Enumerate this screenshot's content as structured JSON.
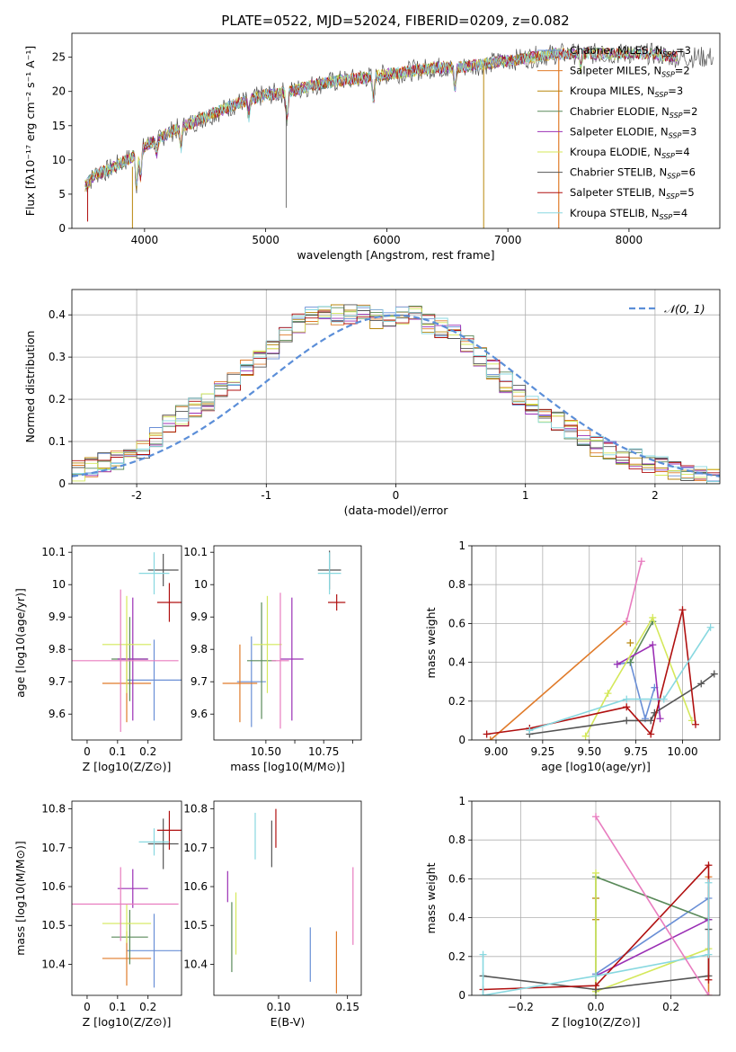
{
  "figure_title": "PLATE=0522, MJD=52024, FIBERID=0209, z=0.082",
  "colors": {
    "Chabrier MILES": "#6a8fd6",
    "Salpeter MILES": "#e07b2a",
    "Kroupa MILES": "#b8860b",
    "Chabrier ELODIE": "#5a8a5a",
    "Salpeter ELODIE": "#9b30b5",
    "Kroupa ELODIE": "#d4e85a",
    "Chabrier STELIB": "#555555",
    "Salpeter STELIB": "#b01010",
    "Kroupa STELIB": "#88d8e0",
    "pink": "#e87cbf",
    "gaussian": "#5b8ed8"
  },
  "chart_data": [
    {
      "id": "spectrum",
      "type": "line",
      "title": "PLATE=0522, MJD=52024, FIBERID=0209, z=0.082",
      "xlabel": "wavelength [Angstrom, rest frame]",
      "ylabel": "Flux [fλ10⁻¹⁷ erg cm⁻² s⁻¹ A⁻¹]",
      "xlim": [
        3400,
        8750
      ],
      "ylim": [
        0,
        28.5
      ],
      "xticks": [
        4000,
        5000,
        6000,
        7000,
        8000
      ],
      "yticks": [
        0,
        5,
        10,
        15,
        20,
        25
      ],
      "legend_loc": "upper right",
      "series": [
        {
          "name": "Chabrier MILES, N_SSP=3",
          "label_main": "Chabrier MILES, N",
          "label_sub": "SSP",
          "label_end": "=3"
        },
        {
          "name": "Salpeter MILES, N_SSP=2",
          "label_main": "Salpeter MILES, N",
          "label_sub": "SSP",
          "label_end": "=2"
        },
        {
          "name": "Kroupa MILES, N_SSP=3",
          "label_main": "Kroupa MILES, N",
          "label_sub": "SSP",
          "label_end": "=3"
        },
        {
          "name": "Chabrier ELODIE, N_SSP=2",
          "label_main": "Chabrier ELODIE, N",
          "label_sub": "SSP",
          "label_end": "=2"
        },
        {
          "name": "Salpeter ELODIE, N_SSP=3",
          "label_main": "Salpeter ELODIE, N",
          "label_sub": "SSP",
          "label_end": "=3"
        },
        {
          "name": "Kroupa ELODIE, N_SSP=4",
          "label_main": "Kroupa ELODIE, N",
          "label_sub": "SSP",
          "label_end": "=4"
        },
        {
          "name": "Chabrier STELIB, N_SSP=6",
          "label_main": "Chabrier STELIB, N",
          "label_sub": "SSP",
          "label_end": "=6"
        },
        {
          "name": "Salpeter STELIB, N_SSP=5",
          "label_main": "Salpeter STELIB, N",
          "label_sub": "SSP",
          "label_end": "=5"
        },
        {
          "name": "Kroupa STELIB, N_SSP=4",
          "label_main": "Kroupa STELIB, N",
          "label_sub": "SSP",
          "label_end": "=4"
        }
      ],
      "continuum": {
        "x": [
          3500,
          3600,
          3700,
          3800,
          3900,
          4000,
          4100,
          4200,
          4400,
          4600,
          4800,
          5000,
          5200,
          5400,
          5600,
          5800,
          6000,
          6200,
          6400,
          6600,
          6800,
          7000,
          7200,
          7400,
          7600,
          7800,
          8000,
          8200,
          8400
        ],
        "y": [
          6,
          8,
          8.5,
          9.5,
          10.5,
          12,
          13,
          14,
          15.5,
          17,
          18.5,
          19.5,
          20,
          21,
          21.5,
          22,
          22.5,
          23,
          23.5,
          23.5,
          24,
          24.5,
          25,
          25.5,
          25.5,
          25.5,
          25.5,
          25.5,
          25
        ]
      }
    },
    {
      "id": "residuals",
      "type": "line",
      "xlabel": "(data-model)/error",
      "ylabel": "Normed distribution",
      "xlim": [
        -2.5,
        2.5
      ],
      "ylim": [
        0,
        0.46
      ],
      "xticks": [
        -2,
        -1,
        0,
        1,
        2
      ],
      "yticks": [
        0.0,
        0.1,
        0.2,
        0.3,
        0.4
      ],
      "legend": "𝒩(0, 1)",
      "legend_loc": "upper right",
      "gaussian": {
        "mean": 0,
        "sigma": 1
      },
      "hist_centers": [
        -2.45,
        -2.35,
        -2.25,
        -2.15,
        -2.05,
        -1.95,
        -1.85,
        -1.75,
        -1.65,
        -1.55,
        -1.45,
        -1.35,
        -1.25,
        -1.15,
        -1.05,
        -0.95,
        -0.85,
        -0.75,
        -0.65,
        -0.55,
        -0.45,
        -0.35,
        -0.25,
        -0.15,
        -0.05,
        0.05,
        0.15,
        0.25,
        0.35,
        0.45,
        0.55,
        0.65,
        0.75,
        0.85,
        0.95,
        1.05,
        1.15,
        1.25,
        1.35,
        1.45,
        1.55,
        1.65,
        1.75,
        1.85,
        1.95,
        2.05,
        2.15,
        2.25,
        2.35,
        2.45
      ],
      "hist_base": [
        0.03,
        0.04,
        0.05,
        0.055,
        0.06,
        0.08,
        0.11,
        0.14,
        0.16,
        0.18,
        0.19,
        0.22,
        0.24,
        0.27,
        0.3,
        0.32,
        0.35,
        0.38,
        0.4,
        0.41,
        0.4,
        0.4,
        0.4,
        0.39,
        0.39,
        0.4,
        0.4,
        0.38,
        0.37,
        0.36,
        0.33,
        0.3,
        0.27,
        0.24,
        0.21,
        0.19,
        0.17,
        0.15,
        0.13,
        0.11,
        0.09,
        0.08,
        0.07,
        0.06,
        0.05,
        0.04,
        0.035,
        0.03,
        0.02,
        0.015
      ]
    },
    {
      "id": "age_vs_Z",
      "type": "scatter",
      "xlabel": "Z [log10(Z/Z⊙)]",
      "ylabel": "age [log10(age/yr)]",
      "xlim": [
        -0.05,
        0.31
      ],
      "ylim": [
        9.52,
        10.12
      ],
      "xticks": [
        0.0,
        0.1,
        0.2
      ],
      "yticks": [
        9.6,
        9.7,
        9.8,
        9.9,
        10.0,
        10.1
      ],
      "points": [
        {
          "c": "Chabrier MILES",
          "x": 0.22,
          "y": 9.705,
          "xerr": 0.09,
          "yerr": 0.125
        },
        {
          "c": "Salpeter MILES",
          "x": 0.13,
          "y": 9.695,
          "xerr": 0.08,
          "yerr": 0.12
        },
        {
          "c": "Chabrier ELODIE",
          "x": 0.14,
          "y": 9.77,
          "xerr": 0.06,
          "yerr": 0.13
        },
        {
          "c": "Salpeter ELODIE",
          "x": 0.15,
          "y": 9.77,
          "xerr": 0.05,
          "yerr": 0.19
        },
        {
          "c": "Kroupa ELODIE",
          "x": 0.13,
          "y": 9.815,
          "xerr": 0.08,
          "yerr": 0.15
        },
        {
          "c": "Chabrier STELIB",
          "x": 0.25,
          "y": 10.045,
          "xerr": 0.05,
          "yerr": 0.05
        },
        {
          "c": "Salpeter STELIB",
          "x": 0.27,
          "y": 9.945,
          "xerr": 0.04,
          "yerr": 0.06
        },
        {
          "c": "Kroupa STELIB",
          "x": 0.22,
          "y": 10.035,
          "xerr": 0.05,
          "yerr": 0.065
        },
        {
          "c": "pink",
          "x": 0.11,
          "y": 9.765,
          "xerr": 0.19,
          "yerr": 0.22
        }
      ]
    },
    {
      "id": "age_vs_mass",
      "type": "scatter",
      "xlabel": "mass [log10(M/M⊙)]",
      "xlim": [
        10.32,
        10.83
      ],
      "ylim": [
        9.52,
        10.12
      ],
      "xticks": [
        10.5,
        10.6,
        10.7,
        10.8
      ],
      "xticklabels": [
        "10.50",
        "",
        "10.75",
        ""
      ],
      "yticks": [
        9.6,
        9.7,
        9.8,
        9.9,
        10.0,
        10.1
      ],
      "points": [
        {
          "c": "Chabrier MILES",
          "x": 10.45,
          "y": 9.7,
          "xerr": 0.05,
          "yerr": 0.14
        },
        {
          "c": "Salpeter MILES",
          "x": 10.41,
          "y": 9.695,
          "xerr": 0.06,
          "yerr": 0.12
        },
        {
          "c": "Chabrier ELODIE",
          "x": 10.485,
          "y": 9.765,
          "xerr": 0.05,
          "yerr": 0.18
        },
        {
          "c": "Salpeter ELODIE",
          "x": 10.59,
          "y": 9.77,
          "xerr": 0.04,
          "yerr": 0.19
        },
        {
          "c": "Kroupa ELODIE",
          "x": 10.505,
          "y": 9.815,
          "xerr": 0.05,
          "yerr": 0.15
        },
        {
          "c": "Chabrier STELIB",
          "x": 10.72,
          "y": 10.045,
          "xerr": 0.04,
          "yerr": 0.06
        },
        {
          "c": "Salpeter STELIB",
          "x": 10.745,
          "y": 9.945,
          "xerr": 0.03,
          "yerr": 0.025
        },
        {
          "c": "Kroupa STELIB",
          "x": 10.72,
          "y": 10.035,
          "xerr": 0.04,
          "yerr": 0.065
        },
        {
          "c": "pink",
          "x": 10.55,
          "y": 9.765,
          "xerr": 0.03,
          "yerr": 0.21
        }
      ]
    },
    {
      "id": "weight_vs_age",
      "type": "line",
      "xlabel": "age [log10(age/yr)]",
      "ylabel": "mass weight",
      "xlim": [
        8.87,
        10.2
      ],
      "ylim": [
        0,
        1.0
      ],
      "xticks": [
        9.0,
        9.25,
        9.5,
        9.75,
        10.0
      ],
      "xticklabels": [
        "9.00",
        "9.25",
        "9.50",
        "9.75",
        "10.00"
      ],
      "yticks": [
        0.0,
        0.2,
        0.4,
        0.6,
        0.8,
        1.0
      ],
      "series": [
        {
          "c": "Chabrier MILES",
          "x": [
            9.65,
            9.72,
            9.8,
            9.85
          ],
          "y": [
            0.39,
            0.4,
            0.11,
            0.27
          ]
        },
        {
          "c": "Salpeter MILES",
          "x": [
            8.97,
            9.7
          ],
          "y": [
            0.0,
            0.61
          ]
        },
        {
          "c": "Kroupa MILES",
          "x": [
            9.72
          ],
          "y": [
            0.5
          ]
        },
        {
          "c": "Chabrier ELODIE",
          "x": [
            9.72,
            9.84
          ],
          "y": [
            0.4,
            0.61
          ]
        },
        {
          "c": "Salpeter ELODIE",
          "x": [
            9.65,
            9.84,
            9.88
          ],
          "y": [
            0.39,
            0.49,
            0.11
          ]
        },
        {
          "c": "Kroupa ELODIE",
          "x": [
            9.48,
            9.6,
            9.84,
            10.05
          ],
          "y": [
            0.02,
            0.24,
            0.63,
            0.1
          ]
        },
        {
          "c": "Chabrier STELIB",
          "x": [
            9.18,
            9.7,
            9.83,
            9.85,
            10.1,
            10.17
          ],
          "y": [
            0.03,
            0.1,
            0.1,
            0.14,
            0.29,
            0.34
          ]
        },
        {
          "c": "Salpeter STELIB",
          "x": [
            8.95,
            9.18,
            9.7,
            9.83,
            10.0,
            10.07
          ],
          "y": [
            0.03,
            0.06,
            0.17,
            0.03,
            0.67,
            0.08
          ]
        },
        {
          "c": "Kroupa STELIB",
          "x": [
            9.18,
            9.7,
            9.9,
            10.15
          ],
          "y": [
            0.05,
            0.21,
            0.21,
            0.58
          ]
        },
        {
          "c": "pink",
          "x": [
            9.7,
            9.78
          ],
          "y": [
            0.61,
            0.92
          ]
        }
      ]
    },
    {
      "id": "mass_vs_Z",
      "type": "scatter",
      "xlabel": "Z [log10(Z/Z⊙)]",
      "ylabel": "mass [log10(M/M⊙)]",
      "xlim": [
        -0.05,
        0.31
      ],
      "ylim": [
        10.32,
        10.82
      ],
      "xticks": [
        0.0,
        0.1,
        0.2
      ],
      "yticks": [
        10.4,
        10.5,
        10.6,
        10.7,
        10.8
      ],
      "points": [
        {
          "c": "Chabrier MILES",
          "x": 0.22,
          "y": 10.435,
          "xerr": 0.09,
          "yerr": 0.095
        },
        {
          "c": "Salpeter MILES",
          "x": 0.13,
          "y": 10.415,
          "xerr": 0.08,
          "yerr": 0.07
        },
        {
          "c": "Chabrier ELODIE",
          "x": 0.14,
          "y": 10.47,
          "xerr": 0.06,
          "yerr": 0.07
        },
        {
          "c": "Salpeter ELODIE",
          "x": 0.15,
          "y": 10.595,
          "xerr": 0.05,
          "yerr": 0.05
        },
        {
          "c": "Kroupa ELODIE",
          "x": 0.13,
          "y": 10.505,
          "xerr": 0.08,
          "yerr": 0.05
        },
        {
          "c": "Chabrier STELIB",
          "x": 0.25,
          "y": 10.71,
          "xerr": 0.05,
          "yerr": 0.065
        },
        {
          "c": "Salpeter STELIB",
          "x": 0.27,
          "y": 10.745,
          "xerr": 0.04,
          "yerr": 0.05
        },
        {
          "c": "Kroupa STELIB",
          "x": 0.22,
          "y": 10.715,
          "xerr": 0.05,
          "yerr": 0.035
        },
        {
          "c": "pink",
          "x": 0.11,
          "y": 10.555,
          "xerr": 0.19,
          "yerr": 0.095
        }
      ]
    },
    {
      "id": "mass_vs_EBV",
      "type": "scatter",
      "xlabel": "E(B-V)",
      "xlim": [
        0.053,
        0.16
      ],
      "ylim": [
        10.32,
        10.82
      ],
      "xticks": [
        0.1,
        0.15
      ],
      "xticklabels": [
        "0.10",
        "0.15"
      ],
      "yticks": [
        10.4,
        10.5,
        10.6,
        10.7,
        10.8
      ],
      "points": [
        {
          "c": "Chabrier MILES",
          "x": 0.123,
          "y": 10.425,
          "xerr": 0,
          "yerr": 0.07
        },
        {
          "c": "Salpeter MILES",
          "x": 0.142,
          "y": 10.405,
          "xerr": 0,
          "yerr": 0.08
        },
        {
          "c": "Chabrier ELODIE",
          "x": 0.066,
          "y": 10.47,
          "xerr": 0,
          "yerr": 0.09
        },
        {
          "c": "Salpeter ELODIE",
          "x": 0.063,
          "y": 10.6,
          "xerr": 0,
          "yerr": 0.04
        },
        {
          "c": "Kroupa ELODIE",
          "x": 0.069,
          "y": 10.505,
          "xerr": 0,
          "yerr": 0.08
        },
        {
          "c": "Chabrier STELIB",
          "x": 0.095,
          "y": 10.71,
          "xerr": 0,
          "yerr": 0.06
        },
        {
          "c": "Salpeter STELIB",
          "x": 0.098,
          "y": 10.75,
          "xerr": 0,
          "yerr": 0.05
        },
        {
          "c": "Kroupa STELIB",
          "x": 0.083,
          "y": 10.73,
          "xerr": 0,
          "yerr": 0.06
        },
        {
          "c": "pink",
          "x": 0.154,
          "y": 10.55,
          "xerr": 0,
          "yerr": 0.1
        }
      ]
    },
    {
      "id": "weight_vs_Z",
      "type": "line",
      "xlabel": "Z [log10(Z/Z⊙)]",
      "ylabel": "mass weight",
      "xlim": [
        -0.33,
        0.33
      ],
      "ylim": [
        0,
        1.0
      ],
      "xticks": [
        -0.2,
        0.0,
        0.2
      ],
      "xticklabels": [
        "−0.2",
        "0.0",
        "0.2"
      ],
      "yticks": [
        0.0,
        0.2,
        0.4,
        0.6,
        0.8,
        1.0
      ],
      "series": [
        {
          "c": "Chabrier MILES",
          "x": [
            0.0,
            0.3,
            0.3
          ],
          "y": [
            0.11,
            0.5,
            0.39
          ]
        },
        {
          "c": "Salpeter MILES",
          "x": [
            0.3,
            0.3
          ],
          "y": [
            0.0,
            0.61
          ]
        },
        {
          "c": "Kroupa MILES",
          "x": [
            0.0,
            0.0
          ],
          "y": [
            0.39,
            0.5
          ]
        },
        {
          "c": "Chabrier ELODIE",
          "x": [
            0.0,
            0.0,
            0.3
          ],
          "y": [
            0.0,
            0.61,
            0.39
          ]
        },
        {
          "c": "Salpeter ELODIE",
          "x": [
            0.0,
            0.3
          ],
          "y": [
            0.1,
            0.39
          ]
        },
        {
          "c": "Kroupa ELODIE",
          "x": [
            0.0,
            0.0,
            0.3
          ],
          "y": [
            0.63,
            0.02,
            0.24
          ]
        },
        {
          "c": "Chabrier STELIB",
          "x": [
            -0.3,
            0.0,
            0.3,
            0.3
          ],
          "y": [
            0.1,
            0.03,
            0.1,
            0.34
          ]
        },
        {
          "c": "Salpeter STELIB",
          "x": [
            -0.3,
            0.0,
            0.3,
            0.3
          ],
          "y": [
            0.03,
            0.05,
            0.67,
            0.08
          ]
        },
        {
          "c": "Kroupa STELIB",
          "x": [
            -0.3,
            -0.3,
            0.0,
            0.3,
            0.3
          ],
          "y": [
            0.21,
            0.0,
            0.1,
            0.21,
            0.58
          ]
        },
        {
          "c": "pink",
          "x": [
            0.0,
            0.3
          ],
          "y": [
            0.92,
            0.0
          ]
        }
      ]
    }
  ]
}
